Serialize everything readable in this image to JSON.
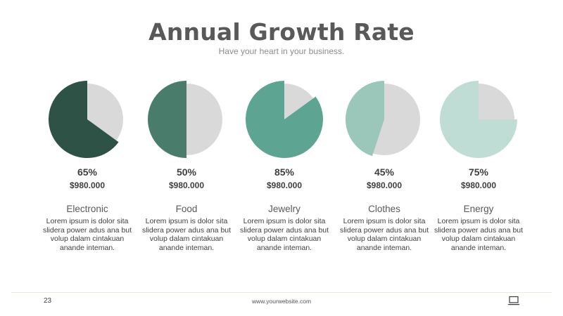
{
  "header": {
    "title": "Annual Growth Rate",
    "subtitle": "Have your heart in your business."
  },
  "chart_data": [
    {
      "type": "pie",
      "category": "Electronic",
      "value_pct": 65,
      "percent_label": "65%",
      "amount": "$980.000",
      "description": "Lorem ipsum is dolor sita slidera power adus ana but volup dalam cintakuan anande inteman.",
      "color": "#2e5246",
      "remainder_color": "#d9d9d9"
    },
    {
      "type": "pie",
      "category": "Food",
      "value_pct": 50,
      "percent_label": "50%",
      "amount": "$980.000",
      "description": "Lorem ipsum is dolor sita slidera power adus ana but volup dalam cintakuan anande inteman.",
      "color": "#4a7c6c",
      "remainder_color": "#d9d9d9"
    },
    {
      "type": "pie",
      "category": "Jewelry",
      "value_pct": 85,
      "percent_label": "85%",
      "amount": "$980.000",
      "description": "Lorem ipsum is dolor sita slidera power adus ana but volup dalam cintakuan anande inteman.",
      "color": "#5da592",
      "remainder_color": "#d9d9d9"
    },
    {
      "type": "pie",
      "category": "Clothes",
      "value_pct": 45,
      "percent_label": "45%",
      "amount": "$980.000",
      "description": "Lorem ipsum is dolor sita slidera power adus ana but volup dalam cintakuan anande inteman.",
      "color": "#9bc7bb",
      "remainder_color": "#d9d9d9"
    },
    {
      "type": "pie",
      "category": "Energy",
      "value_pct": 75,
      "percent_label": "75%",
      "amount": "$980.000",
      "description": "Lorem ipsum is dolor sita slidera power adus ana but volup dalam cintakuan anande inteman.",
      "color": "#bfddd5",
      "remainder_color": "#d9d9d9"
    }
  ],
  "footer": {
    "page_number": "23",
    "website": "www.yourwebsite.com",
    "icon": "laptop-icon"
  }
}
